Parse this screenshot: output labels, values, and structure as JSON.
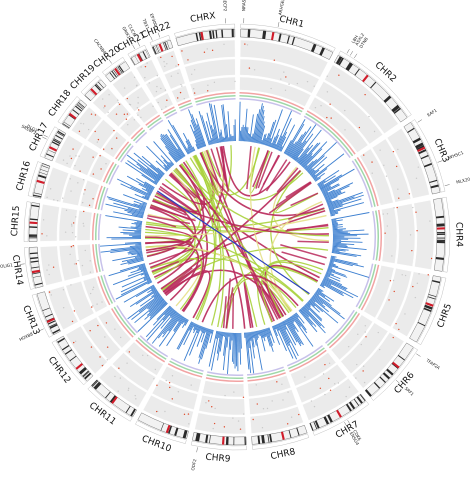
{
  "chromosomes": [
    {
      "name": "CHR1",
      "size": 249
    },
    {
      "name": "CHR2",
      "size": 243
    },
    {
      "name": "CHR3",
      "size": 198
    },
    {
      "name": "CHR4",
      "size": 191
    },
    {
      "name": "CHR5",
      "size": 181
    },
    {
      "name": "CHR6",
      "size": 171
    },
    {
      "name": "CHR7",
      "size": 159
    },
    {
      "name": "CHR8",
      "size": 146
    },
    {
      "name": "CHR9",
      "size": 141
    },
    {
      "name": "CHR10",
      "size": 136
    },
    {
      "name": "CHR11",
      "size": 135
    },
    {
      "name": "CHR12",
      "size": 134
    },
    {
      "name": "CHR13",
      "size": 115
    },
    {
      "name": "CHR14",
      "size": 107
    },
    {
      "name": "CHR15",
      "size": 102
    },
    {
      "name": "CHR16",
      "size": 90
    },
    {
      "name": "CHR17",
      "size": 83
    },
    {
      "name": "CHR18",
      "size": 80
    },
    {
      "name": "CHR19",
      "size": 59
    },
    {
      "name": "CHR20",
      "size": 64
    },
    {
      "name": "CHR21",
      "size": 48
    },
    {
      "name": "CHR22",
      "size": 51
    },
    {
      "name": "CHRX",
      "size": 155
    }
  ],
  "gene_labels": [
    {
      "text": "NRAS",
      "chr": 0,
      "pos": 0.03
    },
    {
      "text": "ARHGEF11",
      "chr": 0,
      "pos": 0.38
    },
    {
      "text": "LBH",
      "chr": 1,
      "pos": 0.07
    },
    {
      "text": "ASXL2",
      "chr": 1,
      "pos": 0.11
    },
    {
      "text": "DTNB",
      "chr": 1,
      "pos": 0.16
    },
    {
      "text": "EAF1",
      "chr": 2,
      "pos": 0.05
    },
    {
      "text": "WHSC1",
      "chr": 2,
      "pos": 0.62
    },
    {
      "text": "MLX20",
      "chr": 2,
      "pos": 0.93
    },
    {
      "text": "TFAP2A",
      "chr": 5,
      "pos": 0.06
    },
    {
      "text": "SRF1",
      "chr": 5,
      "pos": 0.55
    },
    {
      "text": "CDK6",
      "chr": 6,
      "pos": 0.42
    },
    {
      "text": "ENSG4",
      "chr": 6,
      "pos": 0.48
    },
    {
      "text": "ODF2",
      "chr": 8,
      "pos": 0.88
    },
    {
      "text": "OLIG1",
      "chr": 13,
      "pos": 0.62
    },
    {
      "text": "HOXB8",
      "chr": 12,
      "pos": 0.22
    },
    {
      "text": "SREBF2",
      "chr": 16,
      "pos": 0.55
    },
    {
      "text": "DLG2",
      "chr": 16,
      "pos": 0.62
    },
    {
      "text": "CACNB4",
      "chr": 19,
      "pos": 0.5
    },
    {
      "text": "GRIK1",
      "chr": 20,
      "pos": 0.45
    },
    {
      "text": "CLIC6",
      "chr": 20,
      "pos": 0.75
    },
    {
      "text": "EP300",
      "chr": 21,
      "pos": 0.55
    },
    {
      "text": "TBX1",
      "chr": 21,
      "pos": 0.15
    },
    {
      "text": "MECP2",
      "chr": 22,
      "pos": 0.85
    }
  ],
  "colors": {
    "ideogram_light": "#f2f2f2",
    "ideogram_band": "#2a2a2a",
    "centromere": "#d11c2a",
    "track_bg": "#ebebeb",
    "ring_pink": "#f2a3a3",
    "ring_green": "#9fd8a8",
    "ring_lavender": "#c7c1ea",
    "bars": "#3c7fd0",
    "link_green": "#a8d23c",
    "link_red": "#b8285a",
    "link_yellow": "#e6e08a",
    "link_blue": "#2a3fc0"
  }
}
